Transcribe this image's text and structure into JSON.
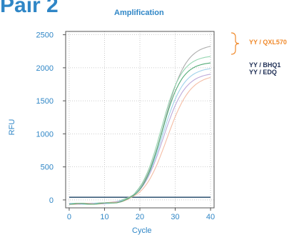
{
  "heading": "Pair 2",
  "colors": {
    "accent": "#2f86c6",
    "legend_orange": "#f08a2c",
    "legend_navy": "#1f2f55",
    "baseline": "#3c5d7a"
  },
  "chart_data": {
    "type": "line",
    "title": "Amplification",
    "xlabel": "Cycle",
    "ylabel": "RFU",
    "xlim": [
      -1,
      41
    ],
    "ylim": [
      -120,
      2550
    ],
    "xticks": [
      0,
      10,
      20,
      30,
      40
    ],
    "yticks": [
      0,
      500,
      1000,
      1500,
      2000,
      2500
    ],
    "grid": true,
    "legend": {
      "placement": "right",
      "entries": [
        {
          "label": "YY / QXL570",
          "color": "#f08a2c"
        },
        {
          "label": "YY / BHQ1",
          "color": "#1f2f55"
        },
        {
          "label": "YY / EDQ",
          "color": "#1f2f55"
        }
      ]
    },
    "series": [
      {
        "color": "#a9a9a9",
        "plateau": 2420,
        "midpoint": 26.8,
        "slope": 0.32
      },
      {
        "color": "#8fd4ad",
        "plateau": 2250,
        "midpoint": 26.0,
        "slope": 0.34
      },
      {
        "color": "#9bd0ea",
        "plateau": 2070,
        "midpoint": 26.4,
        "slope": 0.33
      },
      {
        "color": "#b9a5d8",
        "plateau": 1990,
        "midpoint": 26.6,
        "slope": 0.32
      },
      {
        "color": "#f3b9a0",
        "plateau": 1960,
        "midpoint": 27.6,
        "slope": 0.3
      },
      {
        "color": "#4aa870",
        "plateau": 2150,
        "midpoint": 26.2,
        "slope": 0.35
      }
    ],
    "baselines": [
      {
        "color": "#3c5d7a",
        "value": 40
      }
    ]
  }
}
